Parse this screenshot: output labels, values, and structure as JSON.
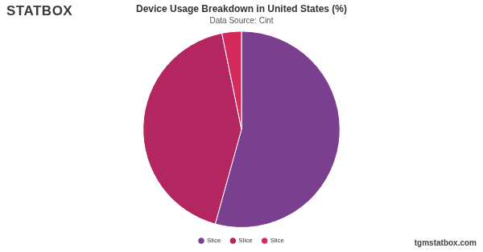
{
  "chart_data": {
    "type": "pie",
    "title": "Device Usage Breakdown in United States (%)",
    "subtitle": "Data Source: Cint",
    "annotations": [
      "STATBOX",
      "tgmstatbox.com"
    ],
    "categories": [
      "Slice",
      "Slice",
      "Slice"
    ],
    "values": [
      54.3,
      42.5,
      3.2
    ],
    "colors": [
      "#7b3f8f",
      "#b3265f",
      "#d42a5c"
    ],
    "legend": "bottom"
  }
}
